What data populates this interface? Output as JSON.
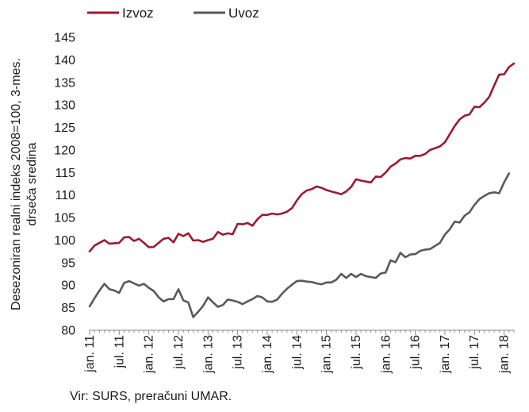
{
  "chart_data": {
    "type": "line",
    "ylabel_lines": [
      "Desezoniran realni indeks 2008=100, 3-mes.",
      "drseča sredina"
    ],
    "ylim": [
      80,
      145
    ],
    "yticks": [
      80,
      85,
      90,
      95,
      100,
      105,
      110,
      115,
      120,
      125,
      130,
      135,
      140,
      145
    ],
    "xticks": [
      {
        "label": "jan. 11",
        "index": 0
      },
      {
        "label": "jul. 11",
        "index": 6
      },
      {
        "label": "jan. 12",
        "index": 12
      },
      {
        "label": "jul. 12",
        "index": 18
      },
      {
        "label": "jan. 13",
        "index": 24
      },
      {
        "label": "jul. 13",
        "index": 30
      },
      {
        "label": "jan. 14",
        "index": 36
      },
      {
        "label": "jul. 14",
        "index": 42
      },
      {
        "label": "jan. 15",
        "index": 48
      },
      {
        "label": "jul. 15",
        "index": 54
      },
      {
        "label": "jan. 16",
        "index": 60
      },
      {
        "label": "jul. 16",
        "index": 66
      },
      {
        "label": "jan. 17",
        "index": 72
      },
      {
        "label": "jul. 17",
        "index": 78
      },
      {
        "label": "jan. 18",
        "index": 84
      }
    ],
    "x_start": "jan. 11",
    "legend_position": "top-left",
    "grid": false,
    "series": [
      {
        "name": "Izvoz",
        "color": "#9b1b30",
        "values": [
          97.5,
          98.8,
          99.4,
          100.0,
          99.2,
          99.3,
          99.4,
          100.6,
          100.7,
          99.8,
          100.3,
          99.4,
          98.4,
          98.5,
          99.4,
          100.3,
          100.5,
          99.5,
          101.4,
          100.9,
          101.5,
          99.9,
          100.0,
          99.6,
          100.0,
          100.3,
          101.8,
          101.2,
          101.5,
          101.3,
          103.6,
          103.5,
          103.8,
          103.2,
          104.6,
          105.6,
          105.6,
          105.9,
          105.7,
          105.9,
          106.3,
          107.1,
          108.8,
          110.2,
          111.0,
          111.3,
          111.9,
          111.6,
          111.1,
          110.8,
          110.5,
          110.2,
          110.8,
          111.8,
          113.5,
          113.2,
          113.0,
          112.8,
          114.1,
          114.0,
          115.0,
          116.3,
          117.0,
          117.9,
          118.2,
          118.1,
          118.7,
          118.7,
          119.1,
          120.0,
          120.4,
          120.8,
          121.7,
          123.5,
          125.3,
          126.8,
          127.6,
          127.9,
          129.6,
          129.5,
          130.5,
          131.8,
          134.3,
          136.7,
          136.8,
          138.4,
          139.2
        ]
      },
      {
        "name": "Uvoz",
        "color": "#595959",
        "values": [
          85.3,
          87.1,
          88.8,
          90.3,
          89.1,
          88.8,
          88.3,
          90.5,
          90.9,
          90.4,
          89.9,
          90.3,
          89.4,
          88.7,
          87.3,
          86.4,
          86.9,
          86.9,
          89.1,
          86.6,
          86.2,
          82.9,
          84.1,
          85.4,
          87.3,
          86.2,
          85.2,
          85.6,
          86.8,
          86.6,
          86.3,
          85.8,
          86.4,
          86.9,
          87.6,
          87.3,
          86.4,
          86.3,
          86.8,
          88.1,
          89.2,
          90.1,
          90.9,
          91.0,
          90.8,
          90.7,
          90.4,
          90.2,
          90.6,
          90.6,
          91.2,
          92.5,
          91.6,
          92.5,
          91.8,
          92.5,
          92.0,
          91.8,
          91.6,
          92.6,
          92.8,
          95.5,
          95.1,
          97.2,
          96.2,
          96.8,
          96.9,
          97.6,
          97.9,
          98.0,
          98.7,
          99.4,
          101.2,
          102.4,
          104.1,
          103.9,
          105.4,
          106.2,
          107.8,
          109.1,
          109.8,
          110.4,
          110.6,
          110.4,
          112.8,
          114.8
        ]
      }
    ]
  },
  "source": "Vir: SURS, preračuni UMAR."
}
